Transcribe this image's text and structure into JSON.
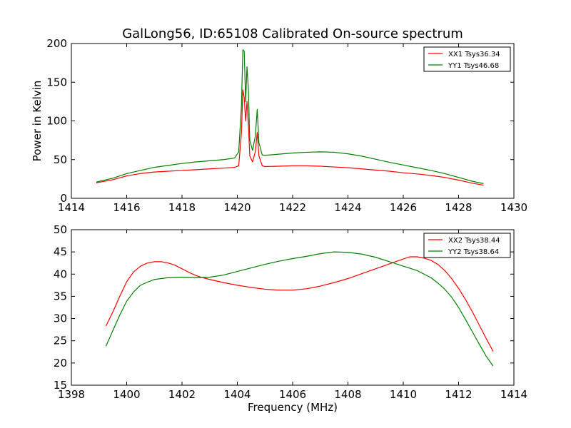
{
  "figure": {
    "title": "GalLong56, ID:65108 Calibrated On-source spectrum",
    "background": "#ffffff"
  },
  "chart_data": [
    {
      "type": "line",
      "title": "GalLong56, ID:65108 Calibrated On-source spectrum",
      "xlabel": "",
      "ylabel": "Power in Kelvin",
      "xlim": [
        1414,
        1430
      ],
      "ylim": [
        0,
        200
      ],
      "xticks": [
        "1414",
        "1416",
        "1418",
        "1420",
        "1422",
        "1424",
        "1426",
        "1428",
        "1430"
      ],
      "yticks": [
        "0",
        "50",
        "100",
        "150",
        "200"
      ],
      "grid": false,
      "legend_position": "top-right",
      "series": [
        {
          "name": "XX1 Tsys36.34",
          "color": "#ff0000",
          "points": [
            [
              1414.9,
              20
            ],
            [
              1415.5,
              24
            ],
            [
              1416,
              29
            ],
            [
              1416.5,
              32
            ],
            [
              1417,
              34
            ],
            [
              1417.5,
              35
            ],
            [
              1418,
              36
            ],
            [
              1418.5,
              37
            ],
            [
              1419,
              38
            ],
            [
              1419.5,
              39
            ],
            [
              1419.9,
              40
            ],
            [
              1420.05,
              42
            ],
            [
              1420.15,
              85
            ],
            [
              1420.2,
              140
            ],
            [
              1420.25,
              130
            ],
            [
              1420.3,
              100
            ],
            [
              1420.35,
              125
            ],
            [
              1420.4,
              95
            ],
            [
              1420.45,
              55
            ],
            [
              1420.55,
              47
            ],
            [
              1420.65,
              60
            ],
            [
              1420.72,
              85
            ],
            [
              1420.78,
              55
            ],
            [
              1420.9,
              42
            ],
            [
              1421,
              41
            ],
            [
              1421.5,
              41.5
            ],
            [
              1422,
              42
            ],
            [
              1422.5,
              42
            ],
            [
              1423,
              41.5
            ],
            [
              1423.5,
              40.5
            ],
            [
              1424,
              39.5
            ],
            [
              1424.5,
              38
            ],
            [
              1425,
              36.5
            ],
            [
              1425.5,
              35
            ],
            [
              1426,
              33
            ],
            [
              1426.5,
              31.5
            ],
            [
              1427,
              29.5
            ],
            [
              1427.5,
              27
            ],
            [
              1428,
              23.5
            ],
            [
              1428.5,
              19.5
            ],
            [
              1428.9,
              17
            ]
          ]
        },
        {
          "name": "YY1 Tsys46.68",
          "color": "#008000",
          "points": [
            [
              1414.9,
              21
            ],
            [
              1415.5,
              26
            ],
            [
              1416,
              32
            ],
            [
              1416.5,
              36
            ],
            [
              1417,
              40
            ],
            [
              1417.5,
              42.5
            ],
            [
              1418,
              45
            ],
            [
              1418.5,
              47
            ],
            [
              1419,
              48.5
            ],
            [
              1419.5,
              50
            ],
            [
              1419.9,
              52
            ],
            [
              1420.05,
              60
            ],
            [
              1420.15,
              120
            ],
            [
              1420.2,
              192
            ],
            [
              1420.25,
              190
            ],
            [
              1420.3,
              125
            ],
            [
              1420.35,
              170
            ],
            [
              1420.4,
              140
            ],
            [
              1420.45,
              75
            ],
            [
              1420.55,
              62
            ],
            [
              1420.65,
              80
            ],
            [
              1420.72,
              115
            ],
            [
              1420.78,
              72
            ],
            [
              1420.9,
              56
            ],
            [
              1421,
              55.5
            ],
            [
              1421.5,
              57
            ],
            [
              1422,
              58.5
            ],
            [
              1422.5,
              59.5
            ],
            [
              1423,
              60
            ],
            [
              1423.5,
              59.5
            ],
            [
              1424,
              57.5
            ],
            [
              1424.5,
              54.5
            ],
            [
              1425,
              50.5
            ],
            [
              1425.5,
              46.5
            ],
            [
              1426,
              43
            ],
            [
              1426.5,
              39.5
            ],
            [
              1427,
              36
            ],
            [
              1427.5,
              32
            ],
            [
              1428,
              27
            ],
            [
              1428.5,
              22
            ],
            [
              1428.9,
              19
            ]
          ]
        }
      ]
    },
    {
      "type": "line",
      "title": "",
      "xlabel": "Frequency (MHz)",
      "ylabel": "",
      "xlim": [
        1398,
        1414
      ],
      "ylim": [
        15,
        50
      ],
      "xticks": [
        "1398",
        "1400",
        "1402",
        "1404",
        "1406",
        "1408",
        "1410",
        "1412",
        "1414"
      ],
      "yticks": [
        "15",
        "20",
        "25",
        "30",
        "35",
        "40",
        "45",
        "50"
      ],
      "grid": false,
      "legend_position": "top-right",
      "series": [
        {
          "name": "XX2 Tsys38.44",
          "color": "#ff0000",
          "points": [
            [
              1399.25,
              28.3
            ],
            [
              1399.5,
              31.5
            ],
            [
              1399.75,
              35
            ],
            [
              1400,
              38.3
            ],
            [
              1400.25,
              40.5
            ],
            [
              1400.5,
              41.8
            ],
            [
              1400.75,
              42.5
            ],
            [
              1401,
              42.8
            ],
            [
              1401.25,
              42.8
            ],
            [
              1401.5,
              42.5
            ],
            [
              1401.75,
              42
            ],
            [
              1402,
              41.2
            ],
            [
              1402.25,
              40.4
            ],
            [
              1402.5,
              39.7
            ],
            [
              1402.75,
              39.2
            ],
            [
              1403,
              38.8
            ],
            [
              1403.5,
              38.1
            ],
            [
              1404,
              37.5
            ],
            [
              1404.5,
              37.0
            ],
            [
              1405,
              36.6
            ],
            [
              1405.5,
              36.4
            ],
            [
              1406,
              36.4
            ],
            [
              1406.5,
              36.7
            ],
            [
              1407,
              37.3
            ],
            [
              1407.5,
              38.1
            ],
            [
              1408,
              39.0
            ],
            [
              1408.5,
              40.1
            ],
            [
              1409,
              41.2
            ],
            [
              1409.5,
              42.3
            ],
            [
              1410,
              43.4
            ],
            [
              1410.25,
              43.9
            ],
            [
              1410.5,
              43.9
            ],
            [
              1410.75,
              43.6
            ],
            [
              1411,
              43.1
            ],
            [
              1411.25,
              42.2
            ],
            [
              1411.5,
              40.8
            ],
            [
              1411.75,
              39.0
            ],
            [
              1412,
              36.8
            ],
            [
              1412.25,
              34.3
            ],
            [
              1412.5,
              31.5
            ],
            [
              1412.75,
              28.5
            ],
            [
              1413,
              25.5
            ],
            [
              1413.25,
              22.6
            ]
          ]
        },
        {
          "name": "YY2 Tsys38.64",
          "color": "#008000",
          "points": [
            [
              1399.25,
              23.8
            ],
            [
              1399.5,
              27.3
            ],
            [
              1399.75,
              30.8
            ],
            [
              1400,
              33.9
            ],
            [
              1400.25,
              36.0
            ],
            [
              1400.5,
              37.5
            ],
            [
              1400.75,
              38.2
            ],
            [
              1401,
              38.8
            ],
            [
              1401.5,
              39.2
            ],
            [
              1402,
              39.3
            ],
            [
              1402.5,
              39.2
            ],
            [
              1403,
              39.3
            ],
            [
              1403.5,
              39.8
            ],
            [
              1404,
              40.6
            ],
            [
              1404.5,
              41.4
            ],
            [
              1405,
              42.2
            ],
            [
              1405.5,
              42.9
            ],
            [
              1406,
              43.5
            ],
            [
              1406.5,
              44.0
            ],
            [
              1407,
              44.6
            ],
            [
              1407.5,
              45.0
            ],
            [
              1408,
              44.9
            ],
            [
              1408.5,
              44.5
            ],
            [
              1409,
              43.8
            ],
            [
              1409.5,
              42.8
            ],
            [
              1410,
              41.8
            ],
            [
              1410.5,
              40.8
            ],
            [
              1411,
              39.2
            ],
            [
              1411.25,
              38.0
            ],
            [
              1411.5,
              36.6
            ],
            [
              1411.75,
              34.8
            ],
            [
              1412,
              32.5
            ],
            [
              1412.25,
              29.8
            ],
            [
              1412.5,
              27.0
            ],
            [
              1412.75,
              24.2
            ],
            [
              1413,
              21.5
            ],
            [
              1413.25,
              19.3
            ]
          ]
        }
      ]
    }
  ]
}
